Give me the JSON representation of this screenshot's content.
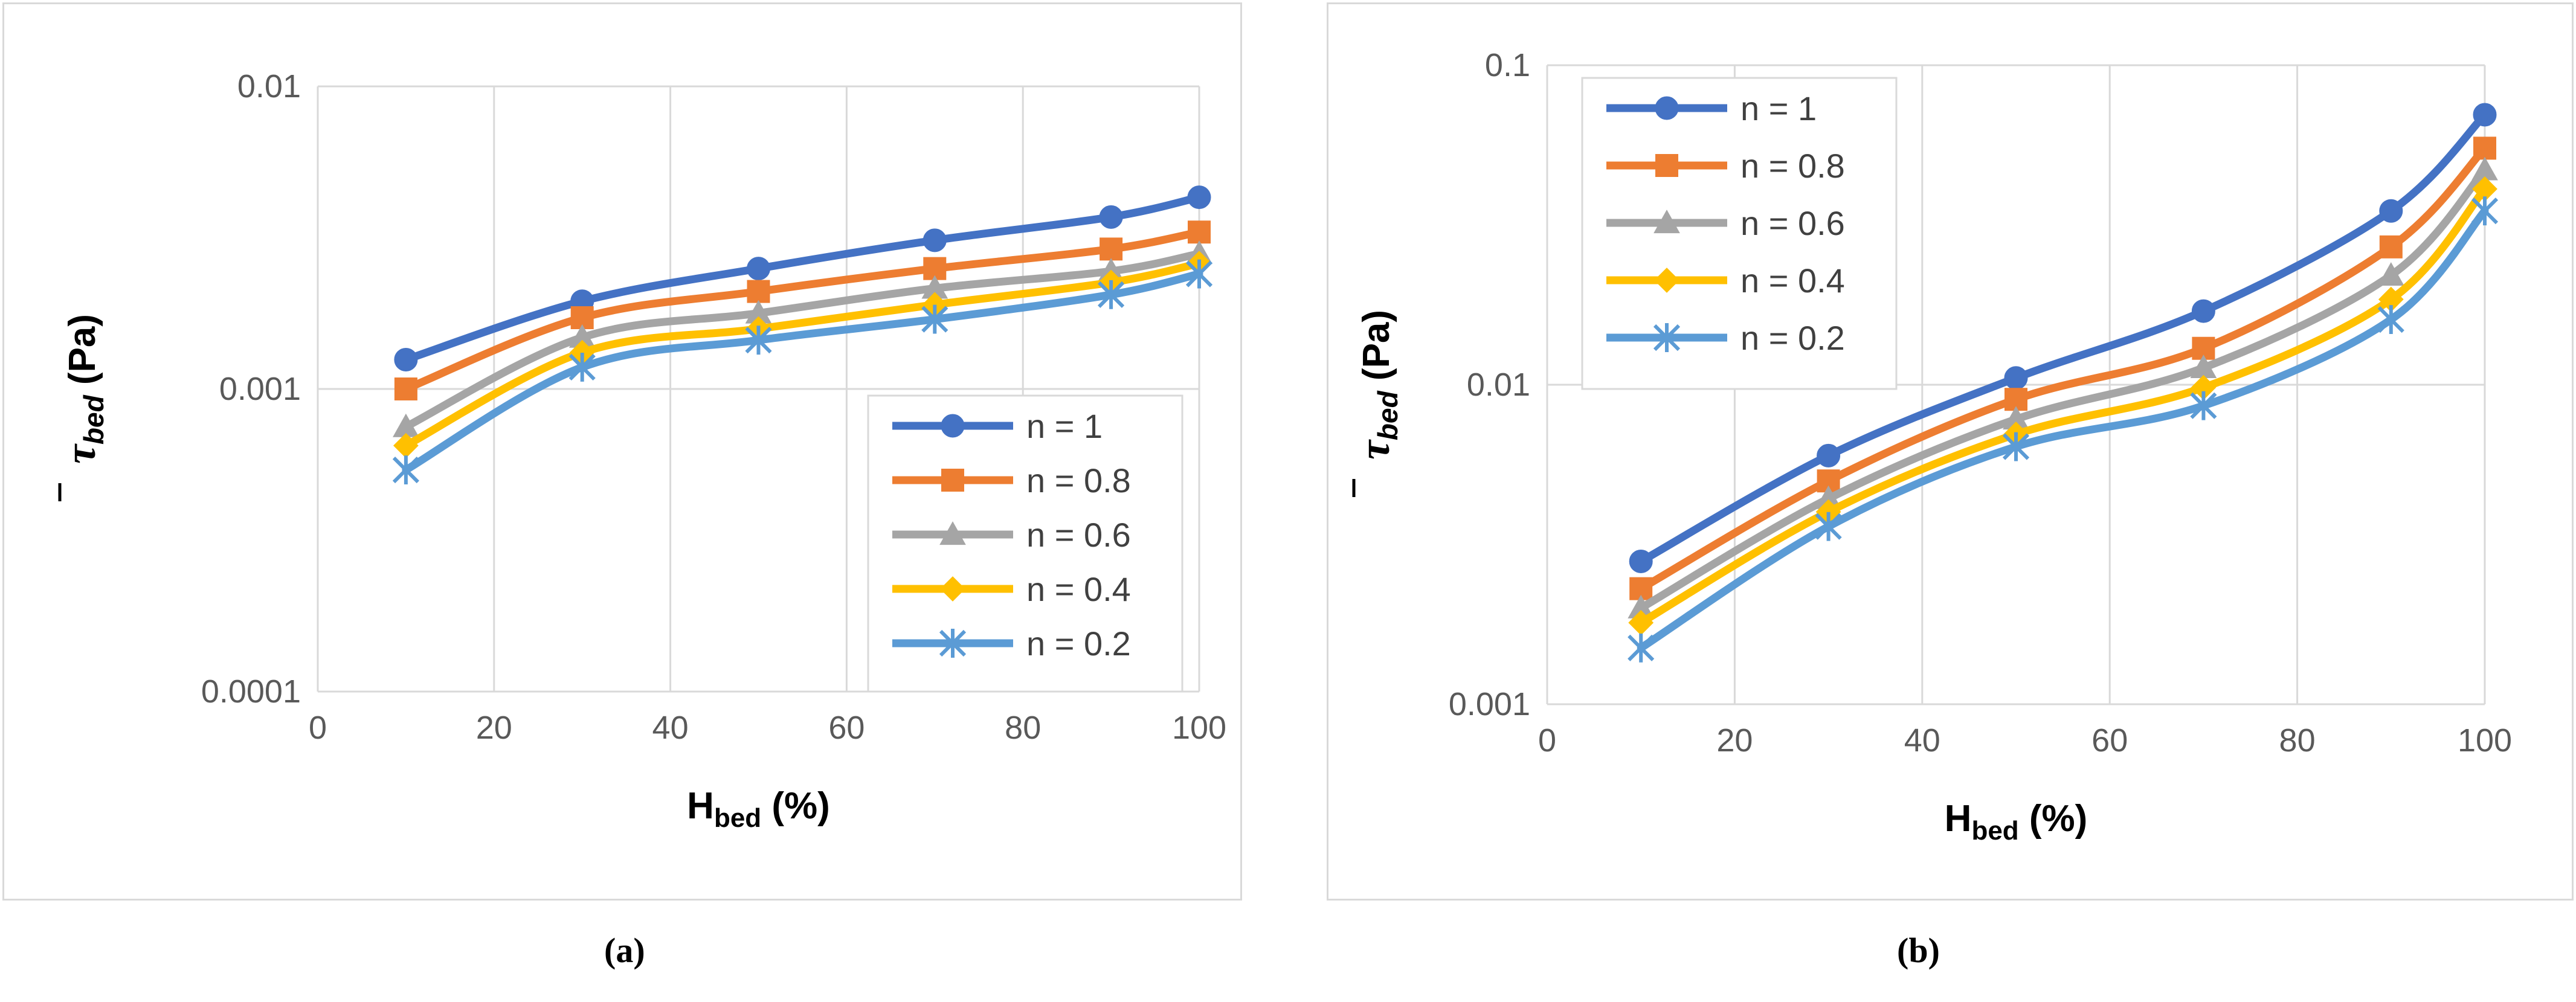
{
  "chart_data": [
    {
      "type": "line",
      "panel": "(a)",
      "xlabel_main": "H",
      "xlabel_sub": "bed",
      "xlabel_suffix": " (%)",
      "ylabel_main": "τ",
      "ylabel_sub": "bed",
      "ylabel_suffix": " (Pa)",
      "xlim": [
        0,
        100
      ],
      "xticks": [
        0,
        20,
        40,
        60,
        80,
        100
      ],
      "yscale": "log",
      "ylim": [
        0.0001,
        0.01
      ],
      "yticks": [
        0.0001,
        0.001,
        0.01
      ],
      "ytick_labels": [
        "0.0001",
        "0.001",
        "0.01"
      ],
      "grid": true,
      "legend_position": "lower-right",
      "x": [
        10,
        30,
        50,
        70,
        90,
        100
      ],
      "series": [
        {
          "name": "n = 1",
          "color": "#4472c4",
          "marker": "circle",
          "values": [
            0.00125,
            0.00195,
            0.0025,
            0.0031,
            0.0037,
            0.0043
          ]
        },
        {
          "name": "n = 0.8",
          "color": "#ed7d31",
          "marker": "square",
          "values": [
            0.001,
            0.00172,
            0.0021,
            0.0025,
            0.0029,
            0.0033
          ]
        },
        {
          "name": "n = 0.6",
          "color": "#a5a5a5",
          "marker": "triangle",
          "values": [
            0.00075,
            0.00148,
            0.00178,
            0.00215,
            0.00245,
            0.0028
          ]
        },
        {
          "name": "n = 0.4",
          "color": "#ffc000",
          "marker": "diamond",
          "values": [
            0.00065,
            0.00132,
            0.00158,
            0.0019,
            0.00225,
            0.0026
          ]
        },
        {
          "name": "n = 0.2",
          "color": "#5b9bd5",
          "marker": "star",
          "values": [
            0.00054,
            0.00118,
            0.00145,
            0.0017,
            0.00205,
            0.0024
          ]
        }
      ]
    },
    {
      "type": "line",
      "panel": "(b)",
      "xlabel_main": "H",
      "xlabel_sub": "bed",
      "xlabel_suffix": " (%)",
      "ylabel_main": "τ",
      "ylabel_sub": "bed",
      "ylabel_suffix": " (Pa)",
      "xlim": [
        0,
        100
      ],
      "xticks": [
        0,
        20,
        40,
        60,
        80,
        100
      ],
      "yscale": "log",
      "ylim": [
        0.001,
        0.1
      ],
      "yticks": [
        0.001,
        0.01,
        0.1
      ],
      "ytick_labels": [
        "0.001",
        "0.01",
        "0.1"
      ],
      "grid": true,
      "legend_position": "top-left",
      "x": [
        10,
        30,
        50,
        70,
        90,
        100
      ],
      "series": [
        {
          "name": "n = 1",
          "color": "#4472c4",
          "marker": "circle",
          "values": [
            0.0028,
            0.006,
            0.0105,
            0.017,
            0.035,
            0.07
          ]
        },
        {
          "name": "n = 0.8",
          "color": "#ed7d31",
          "marker": "square",
          "values": [
            0.0023,
            0.005,
            0.009,
            0.013,
            0.027,
            0.055
          ]
        },
        {
          "name": "n = 0.6",
          "color": "#a5a5a5",
          "marker": "triangle",
          "values": [
            0.002,
            0.0044,
            0.0078,
            0.0113,
            0.022,
            0.047
          ]
        },
        {
          "name": "n = 0.4",
          "color": "#ffc000",
          "marker": "diamond",
          "values": [
            0.0018,
            0.004,
            0.007,
            0.0098,
            0.0185,
            0.041
          ]
        },
        {
          "name": "n = 0.2",
          "color": "#5b9bd5",
          "marker": "star",
          "values": [
            0.0015,
            0.0036,
            0.0064,
            0.0086,
            0.016,
            0.035
          ]
        }
      ]
    }
  ],
  "captions": [
    "(a)",
    "(b)"
  ]
}
